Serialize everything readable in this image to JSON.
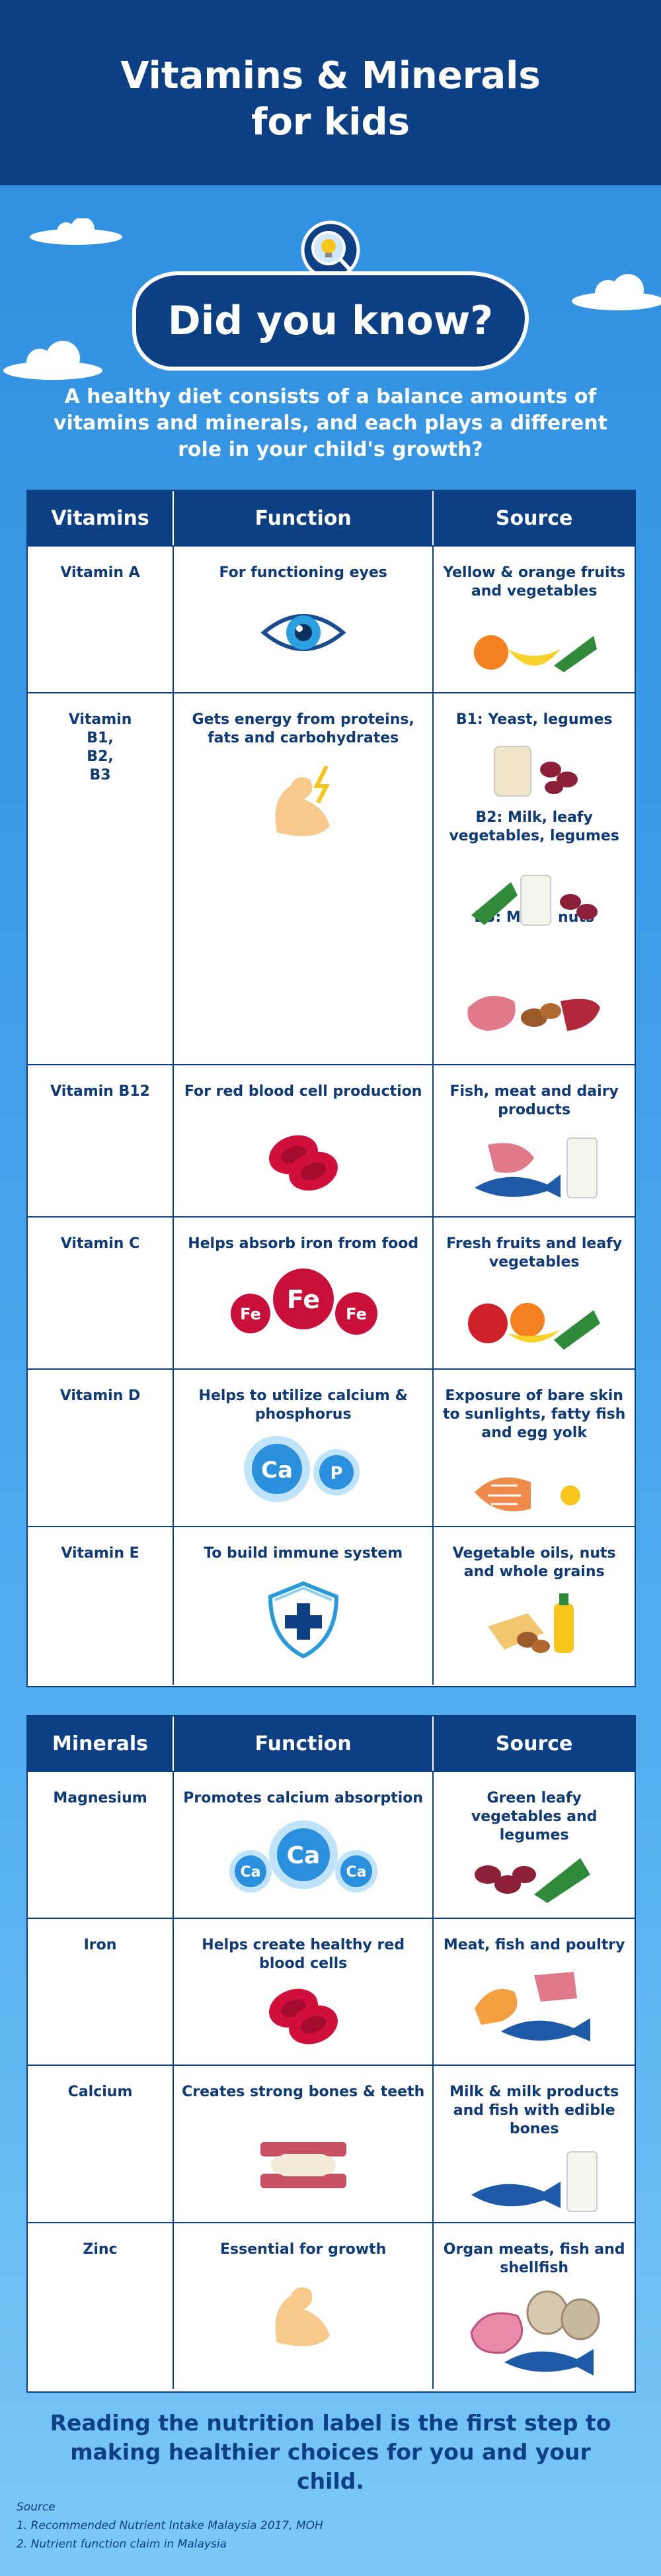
{
  "header": {
    "title_line1": "Vitamins & Minerals",
    "title_line2": "for kids"
  },
  "badge": {
    "text": "Did you know?"
  },
  "intro": "A healthy diet consists of a balance amounts of vitamins and minerals, and each plays a different role in your child's growth?",
  "vitamins_table": {
    "headers": [
      "Vitamins",
      "Function",
      "Source"
    ],
    "rows": [
      {
        "name": "Vitamin A",
        "function": "For functioning eyes",
        "source": "Yellow & orange fruits and vegetables"
      },
      {
        "name": "Vitamin\nB1,\nB2,\nB3",
        "function": "Gets energy from proteins, fats and carbohydrates",
        "source_b1": "B1: Yeast, legumes",
        "source_b2": "B2: Milk, leafy vegetables, legumes",
        "source_b3": "B3: Meat, nuts"
      },
      {
        "name": "Vitamin B12",
        "function": "For red blood cell production",
        "source": "Fish, meat and dairy products"
      },
      {
        "name": "Vitamin C",
        "function": "Helps absorb iron from food",
        "source": "Fresh fruits and leafy vegetables",
        "icon_labels": [
          "Fe",
          "Fe",
          "Fe"
        ]
      },
      {
        "name": "Vitamin D",
        "function": "Helps to utilize calcium & phosphorus",
        "source": "Exposure of bare skin to sunlights, fatty fish and egg yolk",
        "icon_labels": [
          "Ca",
          "P"
        ]
      },
      {
        "name": "Vitamin E",
        "function": "To build immune system",
        "source": "Vegetable oils, nuts and whole grains"
      }
    ]
  },
  "minerals_table": {
    "headers": [
      "Minerals",
      "Function",
      "Source"
    ],
    "rows": [
      {
        "name": "Magnesium",
        "function": "Promotes calcium absorption",
        "source": "Green leafy vegetables and legumes",
        "icon_labels": [
          "Ca",
          "Ca",
          "Ca"
        ]
      },
      {
        "name": "Iron",
        "function": "Helps create healthy red blood cells",
        "source": "Meat, fish and poultry"
      },
      {
        "name": "Calcium",
        "function": "Creates strong bones & teeth",
        "source": "Milk & milk products and fish with edible bones"
      },
      {
        "name": "Zinc",
        "function": "Essential for growth",
        "source": "Organ meats, fish and shellfish"
      }
    ]
  },
  "footer": "Reading the nutrition label is the first step to making healthier choices for you and your child.",
  "sources": {
    "label": "Source",
    "items": [
      "1. Recommended Nutrient Intake Malaysia 2017, MOH",
      "2. Nutrient function claim in Malaysia"
    ]
  },
  "colors": {
    "navy": "#0d3f85",
    "sky": "#3a9ae6",
    "red": "#d0103a",
    "ca_blue": "#2a8fdc"
  }
}
